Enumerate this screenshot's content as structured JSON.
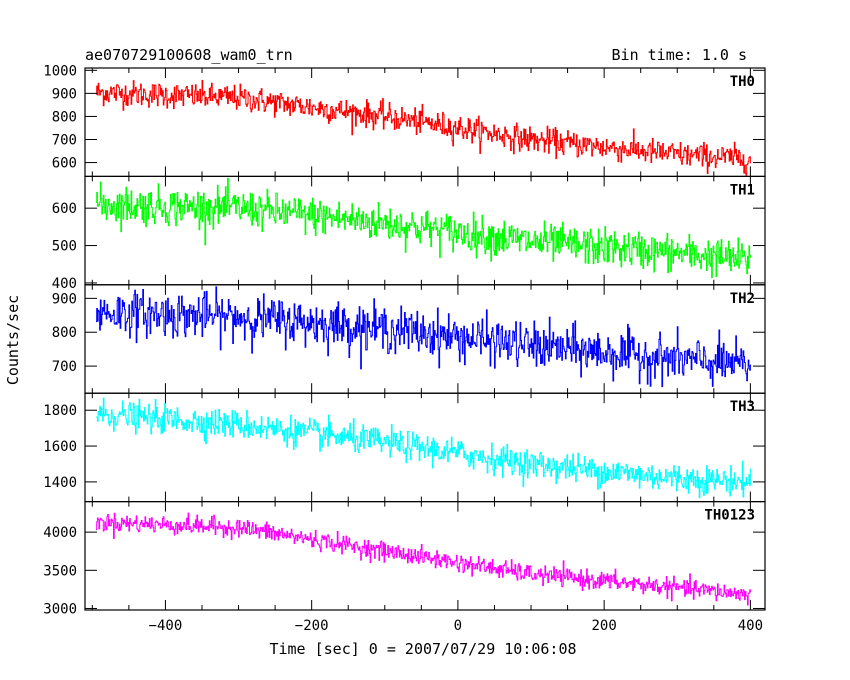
{
  "chart_data": {
    "type": "line",
    "title": "ae070729100608_wam0_trn",
    "subtitle": "Bin time: 1.0 s",
    "xlabel": "Time [sec] 0 = 2007/07/29 10:06:08",
    "ylabel": "Counts/sec",
    "xlim": [
      -510,
      420
    ],
    "x_ticks": [
      -400,
      -200,
      0,
      200,
      400
    ],
    "grid": false,
    "legend": "none",
    "panels": [
      {
        "name": "TH0",
        "color": "#ff0000",
        "ylim": [
          540,
          1010
        ],
        "y_ticks": [
          600,
          700,
          800,
          900,
          1000
        ],
        "trend": {
          "x": [
            -495,
            -300,
            -100,
            100,
            300,
            400
          ],
          "y": [
            905,
            880,
            800,
            700,
            635,
            615
          ]
        },
        "noise_sd": 28
      },
      {
        "name": "TH1",
        "color": "#00ff00",
        "ylim": [
          395,
          685
        ],
        "y_ticks": [
          400,
          500,
          600
        ],
        "trend": {
          "x": [
            -495,
            -300,
            -100,
            100,
            300,
            400
          ],
          "y": [
            610,
            600,
            560,
            510,
            480,
            460
          ]
        },
        "noise_sd": 25
      },
      {
        "name": "TH2",
        "color": "#0000ff",
        "ylim": [
          620,
          940
        ],
        "y_ticks": [
          700,
          800,
          900
        ],
        "trend": {
          "x": [
            -495,
            -300,
            -100,
            100,
            300,
            400
          ],
          "y": [
            860,
            845,
            810,
            760,
            720,
            700
          ]
        },
        "noise_sd": 33
      },
      {
        "name": "TH3",
        "color": "#00ffff",
        "ylim": [
          1290,
          1895
        ],
        "y_ticks": [
          1400,
          1600,
          1800
        ],
        "trend": {
          "x": [
            -495,
            -300,
            -100,
            100,
            300,
            400
          ],
          "y": [
            1780,
            1720,
            1620,
            1500,
            1420,
            1400
          ]
        },
        "noise_sd": 40
      },
      {
        "name": "TH0123",
        "color": "#ff00ff",
        "ylim": [
          2980,
          4400
        ],
        "y_ticks": [
          3000,
          3500,
          4000
        ],
        "trend": {
          "x": [
            -495,
            -300,
            -100,
            100,
            300,
            400
          ],
          "y": [
            4130,
            4060,
            3750,
            3450,
            3270,
            3180
          ]
        },
        "noise_sd": 60
      }
    ]
  }
}
